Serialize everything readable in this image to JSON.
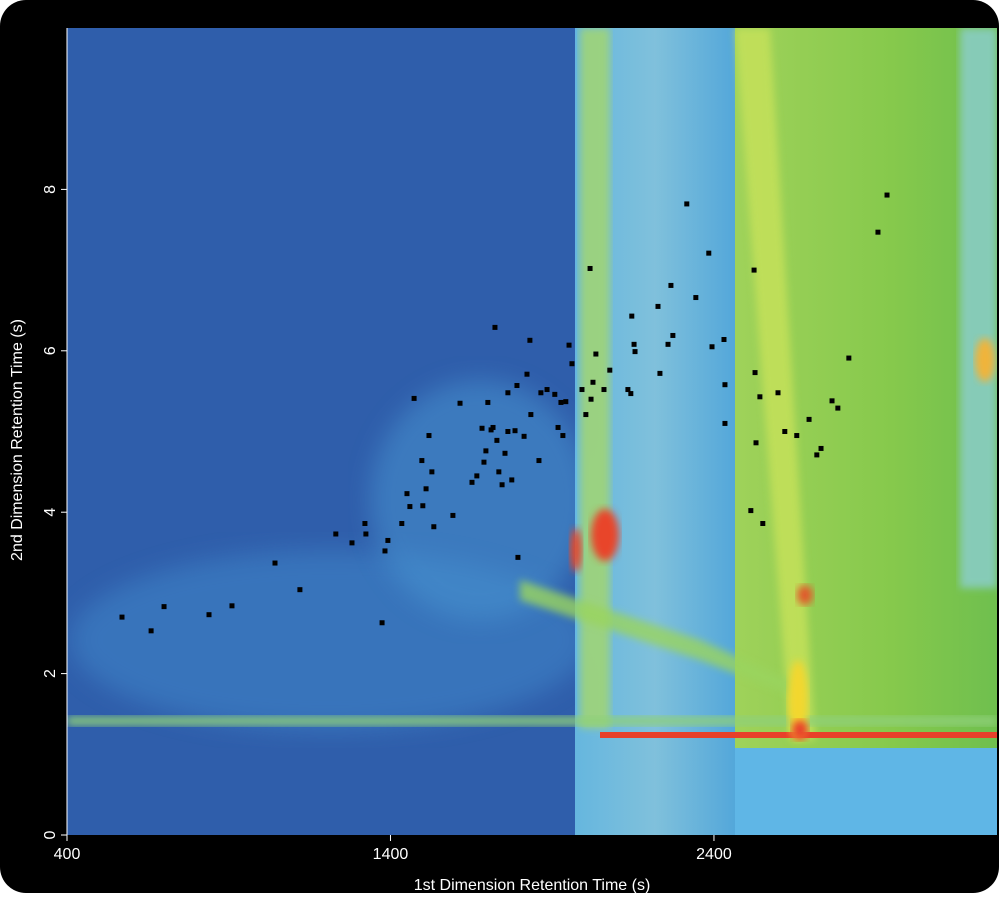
{
  "chart_data": {
    "type": "scatter",
    "xlabel": "1st Dimension Retention Time (s)",
    "ylabel": "2nd Dimension Retention Time (s)",
    "xlim": [
      400,
      3275
    ],
    "ylim": [
      0,
      10
    ],
    "xticks": [
      400,
      1400,
      2400
    ],
    "yticks": [
      0,
      2,
      4,
      6,
      8
    ],
    "color": "#000000",
    "x": [
      570,
      660,
      700,
      839,
      910,
      1043,
      1120,
      1231,
      1281,
      1324,
      1321,
      1374,
      1383,
      1392,
      1435,
      1451,
      1460,
      1473,
      1497,
      1500,
      1510,
      1519,
      1528,
      1534,
      1593,
      1615,
      1652,
      1667,
      1683,
      1689,
      1695,
      1701,
      1711,
      1717,
      1723,
      1729,
      1735,
      1745,
      1754,
      1763,
      1763,
      1775,
      1785,
      1791,
      1794,
      1813,
      1822,
      1831,
      1834,
      1859,
      1865,
      1884,
      1908,
      1918,
      1927,
      1933,
      1942,
      1952,
      1961,
      1992,
      2004,
      2017,
      2020,
      2026,
      2035,
      2060,
      2078,
      2134,
      2143,
      2146,
      2153,
      2156,
      2227,
      2233,
      2258,
      2267,
      2273,
      2316,
      2344,
      2384,
      2394,
      2431,
      2434,
      2434,
      2514,
      2524,
      2527,
      2530,
      2542,
      2551,
      2598,
      2619,
      2656,
      2694,
      2718,
      2731,
      2765,
      2783,
      2817,
      2907,
      2935
    ],
    "y": [
      2.7,
      2.53,
      2.83,
      2.73,
      2.84,
      3.37,
      3.04,
      3.73,
      3.62,
      3.73,
      3.86,
      2.63,
      3.52,
      3.65,
      3.86,
      4.23,
      4.07,
      5.41,
      4.64,
      4.08,
      4.29,
      4.95,
      4.5,
      3.82,
      3.96,
      5.35,
      4.37,
      4.45,
      5.04,
      4.62,
      4.76,
      5.36,
      5.02,
      5.05,
      6.29,
      4.89,
      4.5,
      4.34,
      4.73,
      5.48,
      5.0,
      4.4,
      5.01,
      5.57,
      3.44,
      4.94,
      5.71,
      6.13,
      5.21,
      4.64,
      5.48,
      5.52,
      5.46,
      5.05,
      5.36,
      4.95,
      5.37,
      6.07,
      5.84,
      5.52,
      5.21,
      7.02,
      5.4,
      5.61,
      5.96,
      5.52,
      5.76,
      5.52,
      5.47,
      6.43,
      6.08,
      5.99,
      6.55,
      5.72,
      6.08,
      6.81,
      6.19,
      7.82,
      6.66,
      7.21,
      6.05,
      6.14,
      5.58,
      5.1,
      4.02,
      7.0,
      5.73,
      4.86,
      5.43,
      3.86,
      5.48,
      5.0,
      4.95,
      5.15,
      4.71,
      4.79,
      5.38,
      5.29,
      5.91,
      7.47,
      7.93
    ]
  }
}
